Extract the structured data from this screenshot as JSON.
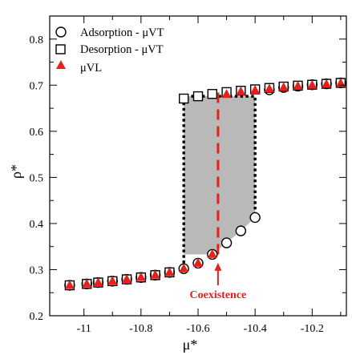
{
  "chart_data": {
    "type": "scatter",
    "xlabel": "μ*",
    "ylabel": "ρ*",
    "xlim": [
      -11.12,
      -10.08
    ],
    "ylim": [
      0.2,
      0.85
    ],
    "x_ticks": [
      -11,
      -10.8,
      -10.6,
      -10.4,
      -10.2
    ],
    "x_tick_labels": [
      "-11",
      "-10.8",
      "-10.6",
      "-10.4",
      "-10.2"
    ],
    "y_ticks": [
      0.2,
      0.3,
      0.4,
      0.5,
      0.6,
      0.7,
      0.8
    ],
    "y_tick_labels": [
      "0.2",
      "0.3",
      "0.4",
      "0.5",
      "0.6",
      "0.7",
      "0.8"
    ],
    "grid": false,
    "legend_position": "top-left",
    "series": [
      {
        "name": "Adsorption - μVT",
        "marker": "circle",
        "color": "#000000",
        "x": [
          -11.05,
          -10.99,
          -10.95,
          -10.9,
          -10.85,
          -10.8,
          -10.75,
          -10.7,
          -10.65,
          -10.6,
          -10.55,
          -10.5,
          -10.45,
          -10.4,
          -10.35,
          -10.3,
          -10.25,
          -10.2,
          -10.15,
          -10.1
        ],
        "y": [
          0.266,
          0.269,
          0.272,
          0.275,
          0.279,
          0.283,
          0.288,
          0.294,
          0.302,
          0.314,
          0.333,
          0.358,
          0.384,
          0.413,
          0.69,
          0.695,
          0.698,
          0.701,
          0.703,
          0.705
        ]
      },
      {
        "name": "Desorption - μVT",
        "marker": "square",
        "color": "#000000",
        "x": [
          -11.05,
          -10.99,
          -10.95,
          -10.9,
          -10.85,
          -10.8,
          -10.75,
          -10.7,
          -10.65,
          -10.6,
          -10.55,
          -10.5,
          -10.45,
          -10.4,
          -10.35,
          -10.3,
          -10.25,
          -10.2,
          -10.15,
          -10.1
        ],
        "y": [
          0.266,
          0.269,
          0.272,
          0.275,
          0.279,
          0.283,
          0.288,
          0.294,
          0.671,
          0.676,
          0.681,
          0.685,
          0.688,
          0.691,
          0.694,
          0.697,
          0.699,
          0.701,
          0.703,
          0.705
        ]
      },
      {
        "name": "μVL",
        "marker": "triangle",
        "color": "#e8201c",
        "x": [
          -11.05,
          -10.99,
          -10.95,
          -10.9,
          -10.85,
          -10.8,
          -10.75,
          -10.7,
          -10.65,
          -10.6,
          -10.55,
          -10.5,
          -10.45,
          -10.4,
          -10.35,
          -10.3,
          -10.25,
          -10.2,
          -10.15,
          -10.1
        ],
        "y": [
          0.267,
          0.27,
          0.273,
          0.276,
          0.28,
          0.284,
          0.289,
          0.295,
          0.303,
          0.315,
          0.334,
          0.681,
          0.687,
          0.69,
          0.693,
          0.696,
          0.699,
          0.701,
          0.703,
          0.705
        ]
      }
    ],
    "hysteresis_region": {
      "fill": "#b9b9b9",
      "x_left": -10.65,
      "x_right": -10.4,
      "lower_boundary": [
        [
          -10.65,
          0.333
        ],
        [
          -10.6,
          0.333
        ],
        [
          -10.55,
          0.333
        ],
        [
          -10.5,
          0.358
        ],
        [
          -10.45,
          0.384
        ],
        [
          -10.4,
          0.413
        ]
      ],
      "upper_boundary": [
        [
          -10.65,
          0.676
        ],
        [
          -10.4,
          0.676
        ]
      ]
    },
    "dotted_loop": {
      "color": "#000000",
      "points": [
        [
          -10.65,
          0.302
        ],
        [
          -10.65,
          0.676
        ],
        [
          -10.56,
          0.676
        ],
        [
          -10.4,
          0.676
        ],
        [
          -10.4,
          0.413
        ]
      ]
    },
    "coexistence_line": {
      "x": -10.53,
      "y_range": [
        0.333,
        0.685
      ],
      "color": "#e8201c",
      "style": "dashed"
    },
    "annotations": [
      {
        "text": "Coexistence",
        "color": "#e8201c",
        "x": -10.53,
        "y": 0.245,
        "arrow_to": [
          -10.53,
          0.315
        ]
      }
    ]
  }
}
